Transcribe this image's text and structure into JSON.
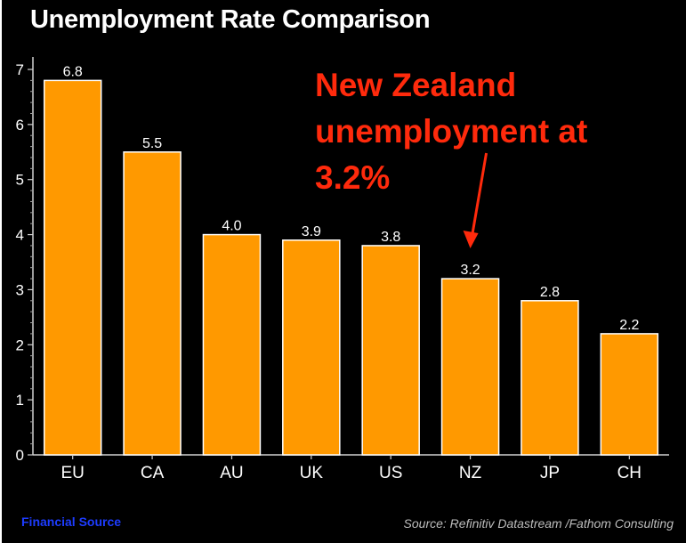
{
  "chart_data": {
    "type": "bar",
    "title": "Unemployment Rate Comparison",
    "categories": [
      "EU",
      "CA",
      "AU",
      "UK",
      "US",
      "NZ",
      "JP",
      "CH"
    ],
    "values": [
      6.8,
      5.5,
      4.0,
      3.9,
      3.8,
      3.2,
      2.8,
      2.2
    ],
    "value_labels": [
      "6.8",
      "5.5",
      "4.0",
      "3.9",
      "3.8",
      "3.2",
      "2.8",
      "2.2"
    ],
    "ylim": [
      0,
      7
    ],
    "yticks": [
      0,
      1,
      2,
      3,
      4,
      5,
      6,
      7
    ],
    "xlabel": "",
    "ylabel": "",
    "grid": false,
    "bar_color": "#ff9900",
    "annotation": {
      "lines": [
        "New Zealand",
        "unemployment at",
        "3.2%"
      ],
      "target_category": "NZ",
      "color": "#ff2a0c"
    }
  },
  "footer": {
    "left": "Financial Source",
    "right": "Source: Refinitiv Datastream /Fathom Consulting"
  }
}
